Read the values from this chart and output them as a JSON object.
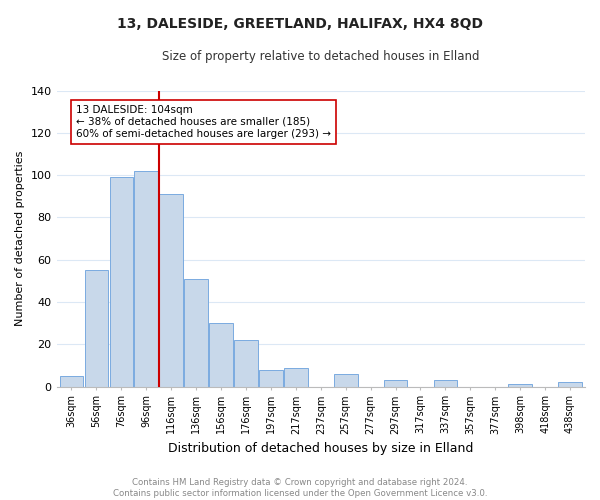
{
  "title": "13, DALESIDE, GREETLAND, HALIFAX, HX4 8QD",
  "subtitle": "Size of property relative to detached houses in Elland",
  "xlabel": "Distribution of detached houses by size in Elland",
  "ylabel": "Number of detached properties",
  "bar_labels": [
    "36sqm",
    "56sqm",
    "76sqm",
    "96sqm",
    "116sqm",
    "136sqm",
    "156sqm",
    "176sqm",
    "197sqm",
    "217sqm",
    "237sqm",
    "257sqm",
    "277sqm",
    "297sqm",
    "317sqm",
    "337sqm",
    "357sqm",
    "377sqm",
    "398sqm",
    "418sqm",
    "438sqm"
  ],
  "bar_values": [
    5,
    55,
    99,
    102,
    91,
    51,
    30,
    22,
    8,
    9,
    0,
    6,
    0,
    3,
    0,
    3,
    0,
    0,
    1,
    0,
    2
  ],
  "bar_color": "#c8d8ea",
  "bar_edge_color": "#7aabe0",
  "vline_x": 3.52,
  "vline_color": "#cc0000",
  "annotation_text": "13 DALESIDE: 104sqm\n← 38% of detached houses are smaller (185)\n60% of semi-detached houses are larger (293) →",
  "annotation_box_color": "#ffffff",
  "annotation_box_edge": "#cc0000",
  "ylim": [
    0,
    140
  ],
  "yticks": [
    0,
    20,
    40,
    60,
    80,
    100,
    120,
    140
  ],
  "footer_text": "Contains HM Land Registry data © Crown copyright and database right 2024.\nContains public sector information licensed under the Open Government Licence v3.0.",
  "footer_color": "#888888",
  "background_color": "#ffffff",
  "grid_color": "#dce8f5"
}
